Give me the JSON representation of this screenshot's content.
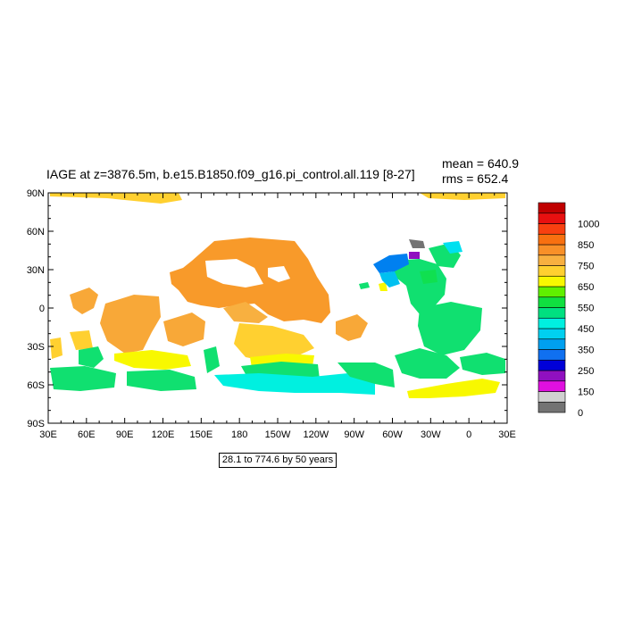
{
  "title": "IAGE at z=3876.5m, b.e15.B1850.f09_g16.pi_control.all.119 [8-27]",
  "stats": {
    "mean_label": "mean = 640.9",
    "rms_label": "rms = 652.4"
  },
  "range_label": "28.1 to 774.6 by 50 years",
  "lat_labels": [
    "90N",
    "60N",
    "30N",
    "0",
    "30S",
    "60S",
    "90S"
  ],
  "lon_labels": [
    "30E",
    "60E",
    "90E",
    "120E",
    "150E",
    "180",
    "150W",
    "120W",
    "90W",
    "60W",
    "30W",
    "0",
    "30E"
  ],
  "colorbar": {
    "colors": [
      "#737373",
      "#d0d0d0",
      "#e010e0",
      "#9010c0",
      "#0000d8",
      "#1070f0",
      "#00a0f0",
      "#00d0f0",
      "#00f0e0",
      "#00e080",
      "#10e040",
      "#60f000",
      "#f8f800",
      "#ffd030",
      "#f8b040",
      "#f89028",
      "#f87010",
      "#f84010",
      "#e81010",
      "#c00000"
    ],
    "labels": [
      "0",
      "150",
      "250",
      "350",
      "450",
      "550",
      "650",
      "750",
      "850",
      "1000"
    ]
  },
  "regions": [
    {
      "name": "arctic-pacific-strip",
      "color": "#ffd030"
    },
    {
      "name": "arctic-atlantic-strip",
      "color": "#ffd030"
    },
    {
      "name": "north-pacific",
      "color": "#f8a030"
    },
    {
      "name": "indian-ocean",
      "color": "#f8b040"
    },
    {
      "name": "south-pacific",
      "color": "#ffd030"
    },
    {
      "name": "southern-ocean",
      "color": "#10e070"
    },
    {
      "name": "north-atlantic",
      "color": "#10e070"
    },
    {
      "name": "labrador-sea",
      "color": "#00a0f0"
    },
    {
      "name": "south-atlantic",
      "color": "#10e070"
    }
  ]
}
